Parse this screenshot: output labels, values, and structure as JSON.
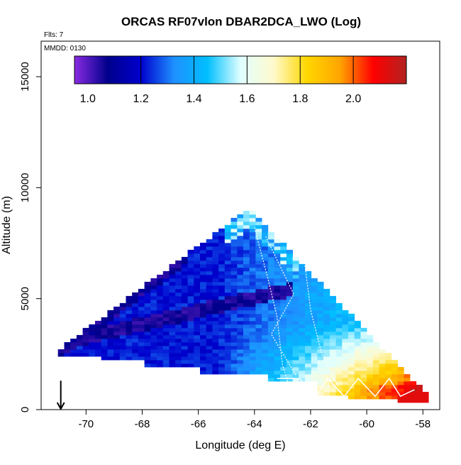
{
  "chart_data": {
    "type": "heatmap",
    "title": "ORCAS RF07vlon DBAR2DCA_LWO (Log)",
    "note_flights": "Flts: 7",
    "note_date": "MMDD: 0130",
    "xlabel": "Longitude (deg E)",
    "ylabel": "Altitude (m)",
    "xlim": [
      -71.6,
      -57.4
    ],
    "ylim": [
      0,
      16600
    ],
    "xticks": [
      -70,
      -68,
      -66,
      -64,
      -62,
      -60,
      -58
    ],
    "yticks": [
      0,
      5000,
      10000,
      15000
    ],
    "colorbar": {
      "range": [
        0.95,
        2.2
      ],
      "ticks": [
        1.0,
        1.2,
        1.4,
        1.6,
        1.8,
        2.0
      ],
      "tick_labels": [
        "1.0",
        "1.2",
        "1.4",
        "1.6",
        "1.8",
        "2.0"
      ],
      "placement": "top-inside",
      "palette": [
        "#8a2be2",
        "#00008b",
        "#0000cd",
        "#1e90ff",
        "#00bfff",
        "#e0ffff",
        "#fffacd",
        "#ffd700",
        "#ffa500",
        "#ff0000",
        "#b22222"
      ]
    },
    "field_description": {
      "longitude_range": [
        -71.0,
        -58.0
      ],
      "altitude_range": [
        0,
        9000
      ],
      "apex_longitude": -64.2,
      "values_min": 1.0,
      "values_max": 2.2
    },
    "annotations": [
      {
        "type": "arrow-down",
        "longitude": -70.9,
        "altitude_top": 600,
        "altitude_bottom": 0
      }
    ],
    "flight_tracks_color": "#ffffff"
  }
}
